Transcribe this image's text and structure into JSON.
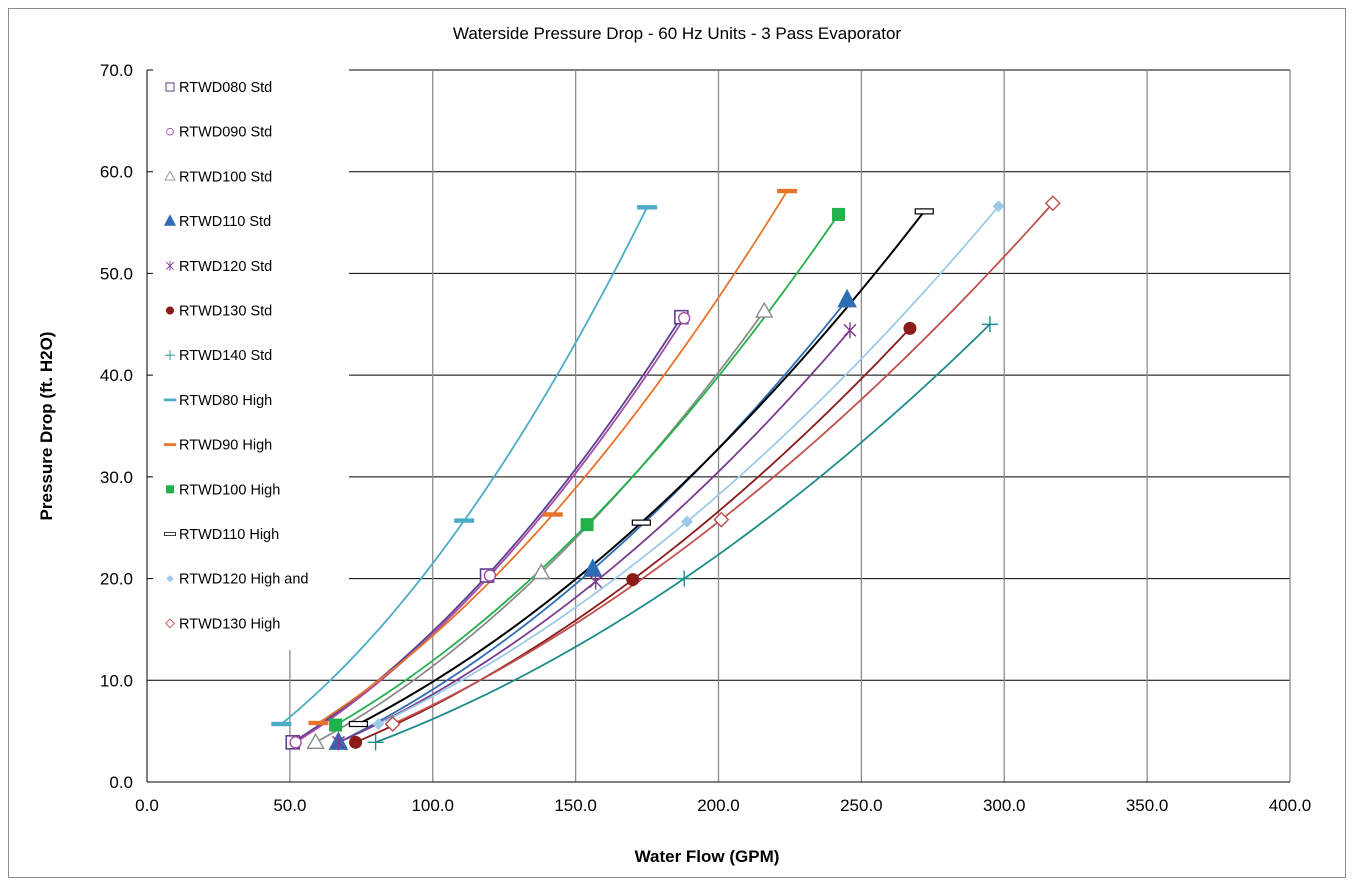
{
  "chart_data": {
    "type": "line",
    "title": "Waterside Pressure Drop - 60 Hz Units - 3 Pass Evaporator",
    "xlabel": "Water Flow (GPM)",
    "ylabel": "Pressure Drop (ft. H2O)",
    "xlim": [
      0,
      400
    ],
    "ylim": [
      0,
      70
    ],
    "x_ticks": [
      "0.0",
      "50.0",
      "100.0",
      "150.0",
      "200.0",
      "250.0",
      "300.0",
      "350.0",
      "400.0"
    ],
    "y_ticks": [
      "0.0",
      "10.0",
      "20.0",
      "30.0",
      "40.0",
      "50.0",
      "60.0",
      "70.0"
    ],
    "grid": true,
    "legend_position": "left-inside",
    "series": [
      {
        "name": "RTWD080 Std",
        "color": "#5b3f8c",
        "marker": "square-open",
        "points": [
          [
            51,
            3.9
          ],
          [
            119,
            20.3
          ],
          [
            187,
            45.7
          ]
        ]
      },
      {
        "name": "RTWD090 Std",
        "color": "#a64ca6",
        "marker": "circle-open",
        "points": [
          [
            52,
            3.9
          ],
          [
            120,
            20.3
          ],
          [
            188,
            45.6
          ]
        ]
      },
      {
        "name": "RTWD100 Std",
        "color": "#8c8c8c",
        "marker": "triangle-open",
        "points": [
          [
            59,
            3.9
          ],
          [
            138,
            20.6
          ],
          [
            216,
            46.3
          ]
        ]
      },
      {
        "name": "RTWD110 Std",
        "color": "#2e6db4",
        "marker": "triangle-filled",
        "points": [
          [
            67,
            3.9
          ],
          [
            156,
            20.9
          ],
          [
            245,
            47.4
          ]
        ]
      },
      {
        "name": "RTWD120 Std",
        "color": "#7a3b8f",
        "marker": "star",
        "points": [
          [
            67,
            3.9
          ],
          [
            157,
            19.7
          ],
          [
            246,
            44.4
          ]
        ]
      },
      {
        "name": "RTWD130 Std",
        "color": "#8b1a1a",
        "marker": "circle-filled",
        "points": [
          [
            73,
            3.9
          ],
          [
            170,
            19.9
          ],
          [
            267,
            44.6
          ]
        ]
      },
      {
        "name": "RTWD140 Std",
        "color": "#1f8a8a",
        "marker": "plus",
        "points": [
          [
            80,
            3.9
          ],
          [
            188,
            20.0
          ],
          [
            295,
            45.0
          ]
        ]
      },
      {
        "name": "RTWD80 High",
        "color": "#4bacc6",
        "marker": "dash",
        "points": [
          [
            47,
            5.7
          ],
          [
            111,
            25.7
          ],
          [
            175,
            56.5
          ]
        ]
      },
      {
        "name": "RTWD90 High",
        "color": "#e8732a",
        "marker": "dash",
        "points": [
          [
            60,
            5.8
          ],
          [
            142,
            26.3
          ],
          [
            224,
            58.1
          ]
        ]
      },
      {
        "name": "RTWD100 High",
        "color": "#22b04b",
        "marker": "square-filled",
        "points": [
          [
            66,
            5.6
          ],
          [
            154,
            25.3
          ],
          [
            242,
            55.8
          ]
        ]
      },
      {
        "name": "RTWD110 High",
        "color": "#000000",
        "marker": "rect-open",
        "points": [
          [
            74,
            5.7
          ],
          [
            173,
            25.5
          ],
          [
            272,
            56.1
          ]
        ]
      },
      {
        "name": "RTWD120 High and",
        "color": "#9ccbe8",
        "marker": "diamond-filled",
        "points": [
          [
            81,
            5.7
          ],
          [
            189,
            25.6
          ],
          [
            298,
            56.6
          ]
        ]
      },
      {
        "name": "RTWD130 High",
        "color": "#c0504d",
        "marker": "diamond-open",
        "points": [
          [
            86,
            5.7
          ],
          [
            201,
            25.8
          ],
          [
            317,
            56.9
          ]
        ]
      }
    ]
  }
}
